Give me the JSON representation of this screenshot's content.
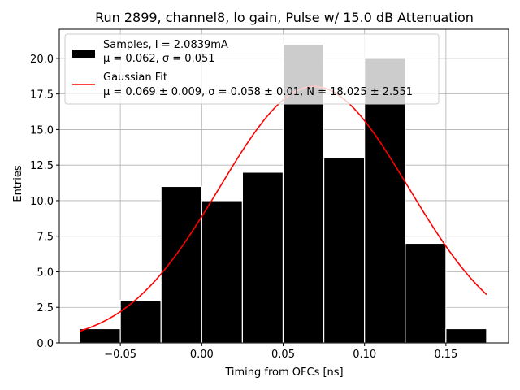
{
  "chart_data": {
    "type": "bar",
    "title": "Run 2899, channel8, lo gain, Pulse w/ 15.0 dB Attenuation",
    "xlabel": "Timing from OFCs [ns]",
    "ylabel": "Entries",
    "xlim": [
      -0.0875,
      0.1885
    ],
    "ylim": [
      0,
      22.05
    ],
    "grid": true,
    "legend_position": "top-left",
    "xticks": [
      -0.05,
      0.0,
      0.05,
      0.1,
      0.15
    ],
    "xtick_labels": [
      "−0.05",
      "0.00",
      "0.05",
      "0.10",
      "0.15"
    ],
    "yticks": [
      0.0,
      2.5,
      5.0,
      7.5,
      10.0,
      12.5,
      15.0,
      17.5,
      20.0
    ],
    "ytick_labels": [
      "0.0",
      "2.5",
      "5.0",
      "7.5",
      "10.0",
      "12.5",
      "15.0",
      "17.5",
      "20.0"
    ],
    "histogram": {
      "name": "Samples",
      "bin_edges": [
        -0.075,
        -0.05,
        -0.025,
        0.0,
        0.025,
        0.05,
        0.075,
        0.1,
        0.125,
        0.15,
        0.175
      ],
      "counts": [
        1,
        3,
        11,
        10,
        12,
        21,
        13,
        20,
        7,
        1
      ],
      "color": "#000000",
      "edge_color": "#ffffff"
    },
    "fit": {
      "name": "Gaussian Fit",
      "mu": 0.069,
      "sigma": 0.058,
      "N": 18.025,
      "x_range": [
        -0.075,
        0.175
      ],
      "color": "#ff0000"
    },
    "legend": {
      "samples_line1": "Samples, I = 2.0839mA",
      "samples_line2": "μ = 0.062, σ = 0.051",
      "fit_line1": "Gaussian Fit",
      "fit_line2": "μ = 0.069 ± 0.009, σ = 0.058 ± 0.01, N = 18.025 ± 2.551"
    }
  }
}
